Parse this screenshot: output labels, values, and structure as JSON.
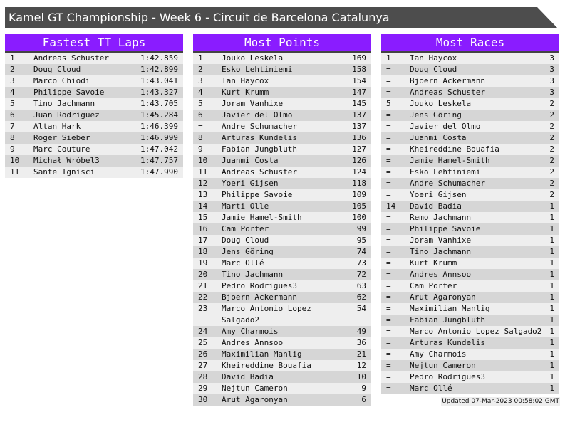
{
  "title": "Kamel GT Championship - Week 6 - Circuit de Barcelona Catalunya",
  "tables": [
    {
      "heading": "Fastest TT Laps",
      "rows": [
        [
          "1",
          "Andreas Schuster",
          "1:42.859"
        ],
        [
          "2",
          "Doug Cloud",
          "1:42.899"
        ],
        [
          "3",
          "Marco Chiodi",
          "1:43.041"
        ],
        [
          "4",
          "Philippe Savoie",
          "1:43.327"
        ],
        [
          "5",
          "Tino Jachmann",
          "1:43.705"
        ],
        [
          "6",
          "Juan Rodriguez",
          "1:45.284"
        ],
        [
          "7",
          "Altan Hark",
          "1:46.399"
        ],
        [
          "8",
          "Roger Sieber",
          "1:46.999"
        ],
        [
          "9",
          "Marc Couture",
          "1:47.042"
        ],
        [
          "10",
          "Michał Wróbel3",
          "1:47.757"
        ],
        [
          "11",
          "Sante Ignisci",
          "1:47.990"
        ]
      ]
    },
    {
      "heading": "Most Points",
      "rows": [
        [
          "1",
          "Jouko Leskela",
          "169"
        ],
        [
          "2",
          "Esko Lehtiniemi",
          "158"
        ],
        [
          "3",
          "Ian Haycox",
          "154"
        ],
        [
          "4",
          "Kurt Krumm",
          "147"
        ],
        [
          "5",
          "Joram Vanhixe",
          "145"
        ],
        [
          "6",
          "Javier del Olmo",
          "137"
        ],
        [
          "=",
          "Andre Schumacher",
          "137"
        ],
        [
          "8",
          "Arturas Kundelis",
          "136"
        ],
        [
          "9",
          "Fabian Jungbluth",
          "127"
        ],
        [
          "10",
          "Juanmi Costa",
          "126"
        ],
        [
          "11",
          "Andreas Schuster",
          "124"
        ],
        [
          "12",
          "Yoeri Gijsen",
          "118"
        ],
        [
          "13",
          "Philippe Savoie",
          "109"
        ],
        [
          "14",
          "Marti Olle",
          "105"
        ],
        [
          "15",
          "Jamie Hamel-Smith",
          "100"
        ],
        [
          "16",
          "Cam Porter",
          "99"
        ],
        [
          "17",
          "Doug Cloud",
          "95"
        ],
        [
          "18",
          "Jens Göring",
          "74"
        ],
        [
          "19",
          "Marc Ollé",
          "73"
        ],
        [
          "20",
          "Tino Jachmann",
          "72"
        ],
        [
          "21",
          "Pedro Rodrigues3",
          "63"
        ],
        [
          "22",
          "Bjoern Ackermann",
          "62"
        ],
        [
          "23",
          "Marco Antonio Lopez Salgado2",
          "54"
        ],
        [
          "24",
          "Amy Charmois",
          "49"
        ],
        [
          "25",
          "Andres Annsoo",
          "36"
        ],
        [
          "26",
          "Maximilian Manlig",
          "21"
        ],
        [
          "27",
          "Kheireddine Bouafia",
          "12"
        ],
        [
          "28",
          "David Badia",
          "10"
        ],
        [
          "29",
          "Nejtun Cameron",
          "9"
        ],
        [
          "30",
          "Arut Agaronyan",
          "6"
        ]
      ]
    },
    {
      "heading": "Most Races",
      "rows": [
        [
          "1",
          "Ian Haycox",
          "3"
        ],
        [
          "=",
          "Doug Cloud",
          "3"
        ],
        [
          "=",
          "Bjoern Ackermann",
          "3"
        ],
        [
          "=",
          "Andreas Schuster",
          "3"
        ],
        [
          "5",
          "Jouko Leskela",
          "2"
        ],
        [
          "=",
          "Jens Göring",
          "2"
        ],
        [
          "=",
          "Javier del Olmo",
          "2"
        ],
        [
          "=",
          "Juanmi Costa",
          "2"
        ],
        [
          "=",
          "Kheireddine Bouafia",
          "2"
        ],
        [
          "=",
          "Jamie Hamel-Smith",
          "2"
        ],
        [
          "=",
          "Esko Lehtiniemi",
          "2"
        ],
        [
          "=",
          "Andre Schumacher",
          "2"
        ],
        [
          "=",
          "Yoeri Gijsen",
          "2"
        ],
        [
          "14",
          "David Badia",
          "1"
        ],
        [
          "=",
          "Remo Jachmann",
          "1"
        ],
        [
          "=",
          "Philippe Savoie",
          "1"
        ],
        [
          "=",
          "Joram Vanhixe",
          "1"
        ],
        [
          "=",
          "Tino Jachmann",
          "1"
        ],
        [
          "=",
          "Kurt Krumm",
          "1"
        ],
        [
          "=",
          "Andres Annsoo",
          "1"
        ],
        [
          "=",
          "Cam Porter",
          "1"
        ],
        [
          "=",
          "Arut Agaronyan",
          "1"
        ],
        [
          "=",
          "Maximilian Manlig",
          "1"
        ],
        [
          "=",
          "Fabian Jungbluth",
          "1"
        ],
        [
          "=",
          "Marco Antonio Lopez Salgado2",
          "1"
        ],
        [
          "=",
          "Arturas Kundelis",
          "1"
        ],
        [
          "=",
          "Amy Charmois",
          "1"
        ],
        [
          "=",
          "Nejtun Cameron",
          "1"
        ],
        [
          "=",
          "Pedro Rodrigues3",
          "1"
        ],
        [
          "=",
          "Marc Ollé",
          "1"
        ]
      ]
    }
  ],
  "updated": "Updated 07-Mar-2023 00:58:02 GMT"
}
